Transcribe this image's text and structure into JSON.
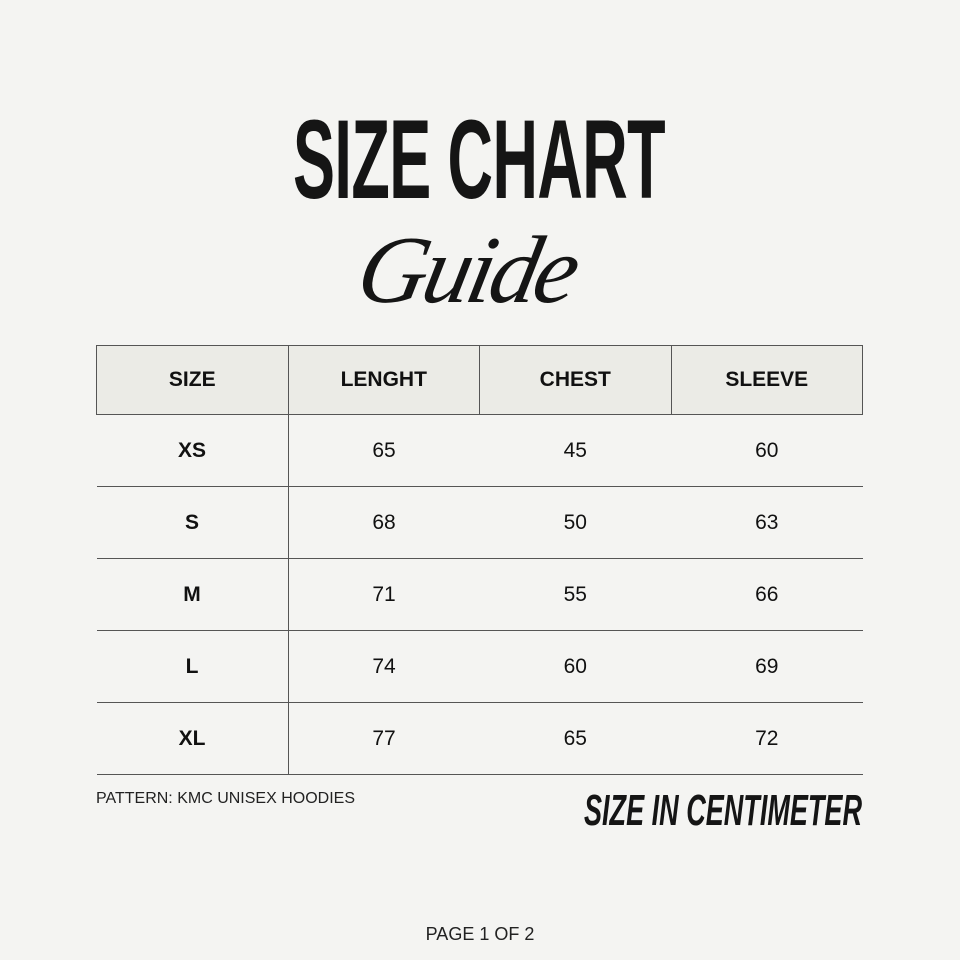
{
  "title": "SIZE CHART",
  "subtitle": "Guide",
  "table": {
    "headers": [
      "SIZE",
      "LENGHT",
      "CHEST",
      "SLEEVE"
    ],
    "rows": [
      [
        "XS",
        "65",
        "45",
        "60"
      ],
      [
        "S",
        "68",
        "50",
        "63"
      ],
      [
        "M",
        "71",
        "55",
        "66"
      ],
      [
        "L",
        "74",
        "60",
        "69"
      ],
      [
        "XL",
        "77",
        "65",
        "72"
      ]
    ]
  },
  "pattern": "PATTERN: KMC UNISEX HOODIES",
  "unit_note": "SIZE IN CENTIMETER",
  "page_indicator": "PAGE 1 OF 2",
  "colors": {
    "background": "#f4f4f2",
    "header_fill": "#ebebe6",
    "text": "#151515"
  }
}
